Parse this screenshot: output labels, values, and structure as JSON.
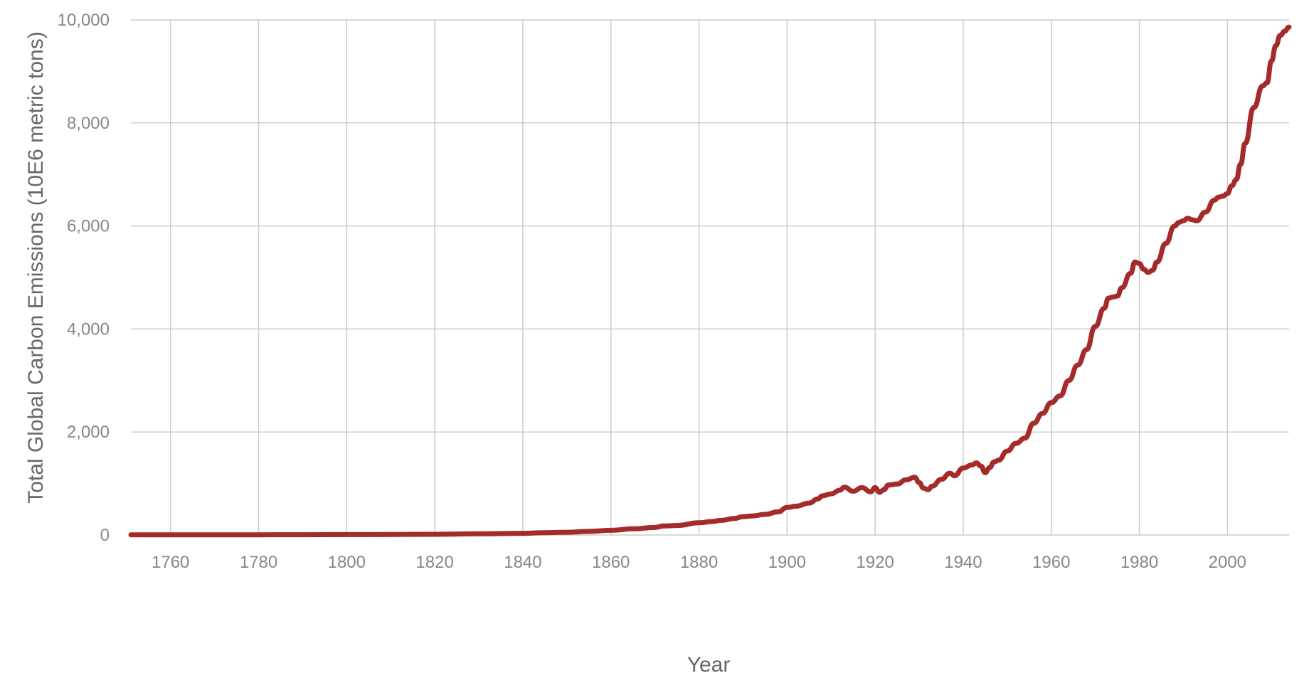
{
  "chart_data": {
    "type": "line",
    "xlabel": "Year",
    "ylabel": "Total Global Carbon Emissions (10E6 metric tons)",
    "xlim": [
      1751,
      2014
    ],
    "ylim": [
      0,
      10000
    ],
    "x_ticks": [
      1760,
      1780,
      1800,
      1820,
      1840,
      1860,
      1880,
      1900,
      1920,
      1940,
      1960,
      1980,
      2000
    ],
    "x_tick_labels": [
      "1760",
      "1780",
      "1800",
      "1820",
      "1840",
      "1860",
      "1880",
      "1900",
      "1920",
      "1940",
      "1960",
      "1980",
      "2000"
    ],
    "y_ticks": [
      0,
      2000,
      4000,
      6000,
      8000,
      10000
    ],
    "y_tick_labels": [
      "0",
      "2,000",
      "4,000",
      "6,000",
      "8,000",
      "10,000"
    ],
    "grid": true,
    "legend": "none",
    "line_color": "#a52a2a",
    "series": [
      {
        "x": [
          1751,
          1760,
          1770,
          1780,
          1790,
          1800,
          1810,
          1820,
          1830,
          1840,
          1845,
          1850,
          1855,
          1860,
          1865,
          1870,
          1872,
          1875,
          1880,
          1883,
          1885,
          1888,
          1890,
          1892,
          1895,
          1898,
          1900,
          1902,
          1905,
          1907,
          1908,
          1910,
          1912,
          1913,
          1915,
          1917,
          1919,
          1920,
          1921,
          1922,
          1923,
          1925,
          1927,
          1929,
          1930,
          1931,
          1932,
          1933,
          1935,
          1937,
          1938,
          1940,
          1942,
          1943,
          1944,
          1945,
          1946,
          1947,
          1948,
          1950,
          1952,
          1954,
          1956,
          1958,
          1960,
          1962,
          1964,
          1966,
          1968,
          1970,
          1972,
          1973,
          1974,
          1975,
          1976,
          1978,
          1979,
          1980,
          1981,
          1982,
          1983,
          1984,
          1986,
          1988,
          1989,
          1990,
          1991,
          1992,
          1993,
          1995,
          1997,
          1998,
          1999,
          2000,
          2001,
          2002,
          2003,
          2004,
          2006,
          2008,
          2009,
          2010,
          2011,
          2012,
          2013,
          2014
        ],
        "y": [
          3,
          3,
          3,
          4,
          6,
          8,
          10,
          14,
          24,
          33,
          45,
          54,
          70,
          91,
          120,
          147,
          175,
          185,
          237,
          263,
          285,
          320,
          356,
          370,
          400,
          450,
          534,
          560,
          620,
          700,
          760,
          800,
          870,
          930,
          850,
          920,
          840,
          920,
          830,
          880,
          970,
          990,
          1070,
          1120,
          1020,
          910,
          880,
          950,
          1080,
          1200,
          1150,
          1300,
          1360,
          1400,
          1340,
          1210,
          1310,
          1420,
          1450,
          1630,
          1780,
          1880,
          2170,
          2360,
          2570,
          2700,
          3000,
          3300,
          3600,
          4050,
          4400,
          4600,
          4620,
          4640,
          4800,
          5080,
          5300,
          5270,
          5160,
          5100,
          5140,
          5300,
          5660,
          6000,
          6070,
          6100,
          6150,
          6120,
          6100,
          6270,
          6500,
          6560,
          6580,
          6630,
          6780,
          6900,
          7200,
          7600,
          8300,
          8720,
          8780,
          9200,
          9500,
          9700,
          9780,
          9860
        ]
      }
    ]
  }
}
